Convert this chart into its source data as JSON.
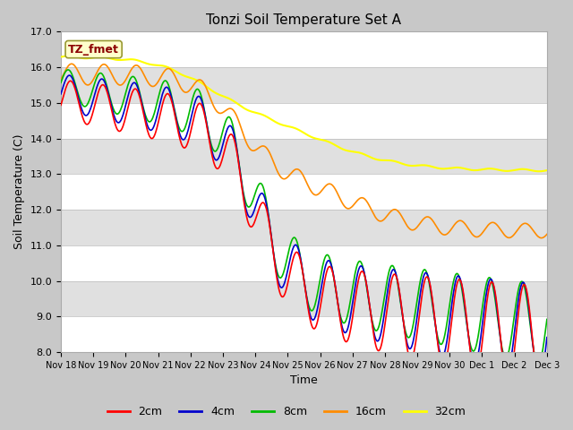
{
  "title": "Tonzi Soil Temperature Set A",
  "xlabel": "Time",
  "ylabel": "Soil Temperature (C)",
  "ylim": [
    8.0,
    17.0
  ],
  "yticks": [
    8.0,
    9.0,
    10.0,
    11.0,
    12.0,
    13.0,
    14.0,
    15.0,
    16.0,
    17.0
  ],
  "xtick_labels": [
    "Nov 18",
    "Nov 19",
    "Nov 20",
    "Nov 21",
    "Nov 22",
    "Nov 23",
    "Nov 24",
    "Nov 25",
    "Nov 26",
    "Nov 27",
    "Nov 28",
    "Nov 29",
    "Nov 30",
    "Dec 1",
    "Dec 2",
    "Dec 3"
  ],
  "annotation": "TZ_fmet",
  "annotation_color": "#8B0000",
  "annotation_bg": "#FFFFCC",
  "series": {
    "2cm": {
      "color": "#FF0000",
      "lw": 1.2
    },
    "4cm": {
      "color": "#0000CC",
      "lw": 1.2
    },
    "8cm": {
      "color": "#00BB00",
      "lw": 1.2
    },
    "16cm": {
      "color": "#FF8C00",
      "lw": 1.2
    },
    "32cm": {
      "color": "#FFFF00",
      "lw": 1.5
    }
  },
  "legend_labels": [
    "2cm",
    "4cm",
    "8cm",
    "16cm",
    "32cm"
  ],
  "legend_colors": [
    "#FF0000",
    "#0000CC",
    "#00BB00",
    "#FF8C00",
    "#FFFF00"
  ],
  "band_colors": [
    "#FFFFFF",
    "#E0E0E0"
  ],
  "fig_bg": "#C8C8C8",
  "n_points": 720
}
